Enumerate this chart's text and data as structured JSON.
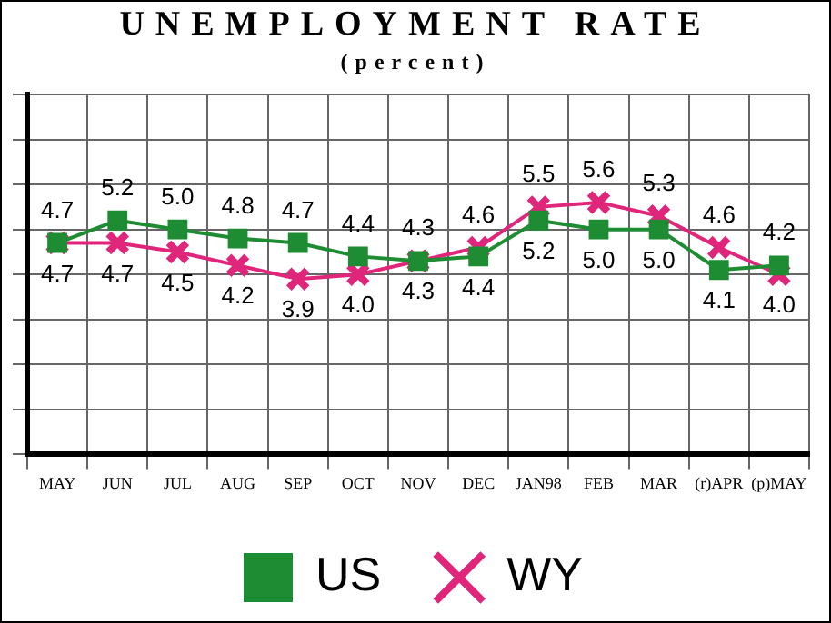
{
  "chart_data": {
    "type": "line",
    "title": "UNEMPLOYMENT RATE",
    "subtitle": "(percent)",
    "categories": [
      "MAY",
      "JUN",
      "JUL",
      "AUG",
      "SEP",
      "OCT",
      "NOV",
      "DEC",
      "JAN98",
      "FEB",
      "MAR",
      "(r)APR",
      "(p)MAY"
    ],
    "series": [
      {
        "name": "US",
        "color": "#1e8c32",
        "marker": "square",
        "values": [
          4.7,
          5.2,
          5.0,
          4.8,
          4.7,
          4.4,
          4.3,
          4.4,
          5.2,
          5.0,
          5.0,
          4.1,
          4.2
        ],
        "value_labels": [
          "4.7",
          "5.2",
          "5.0",
          "4.8",
          "4.7",
          "4.4",
          "4.3",
          "4.4",
          "5.2",
          "5.0",
          "5.0",
          "4.1",
          "4.2"
        ]
      },
      {
        "name": "WY",
        "color": "#e0267a",
        "marker": "cross",
        "values": [
          4.7,
          4.7,
          4.5,
          4.2,
          3.9,
          4.0,
          4.3,
          4.6,
          5.5,
          5.6,
          5.3,
          4.6,
          4.0
        ],
        "value_labels": [
          "4.7",
          "4.7",
          "4.5",
          "4.2",
          "3.9",
          "4.0",
          "4.3",
          "4.6",
          "5.5",
          "5.6",
          "5.3",
          "4.6",
          "4.0"
        ]
      }
    ],
    "tick_labels": "x",
    "grid": true,
    "legend": "bottom",
    "line_style": "solid"
  }
}
